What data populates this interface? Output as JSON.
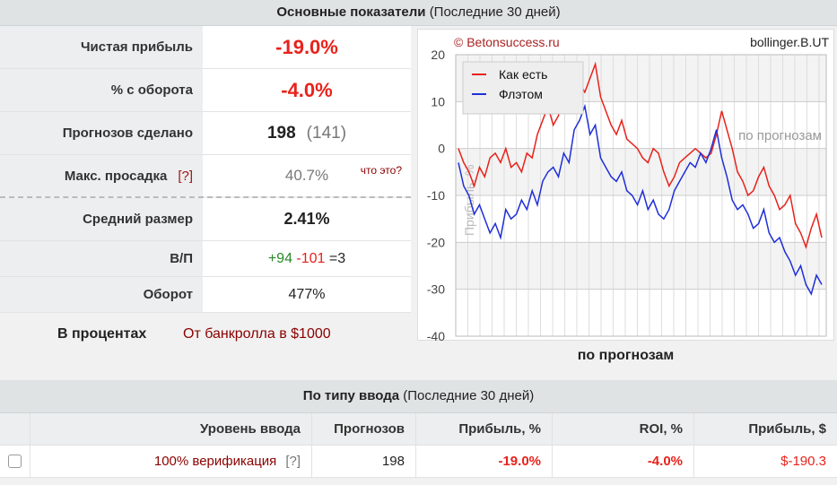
{
  "header1": {
    "title": "Основные показатели",
    "subtitle": "(Последние 30 дней)"
  },
  "stats": {
    "net_profit": {
      "label": "Чистая прибыль",
      "value": "-19.0%"
    },
    "turnover_pct": {
      "label": "% с оборота",
      "value": "-4.0%"
    },
    "predictions": {
      "label": "Прогнозов сделано",
      "value": "198",
      "secondary": "(141)"
    },
    "max_drawdown": {
      "label": "Макс. просадка",
      "help": "[?]",
      "value": "40.7%",
      "link": "что это?"
    },
    "avg_size": {
      "label": "Средний размер",
      "value": "2.41%"
    },
    "wl": {
      "label": "В/П",
      "wins": "+94",
      "losses": "-101",
      "draws": "=3"
    },
    "turnover": {
      "label": "Оборот",
      "value": "477%"
    }
  },
  "percent_row": {
    "label": "В процентах",
    "link": "От банкролла в $1000"
  },
  "chart_data": {
    "type": "line",
    "watermark": "© Betonsuccess.ru",
    "user": "bollinger.B.UT",
    "ylabel": "Прибыль, %",
    "xlabel_inner": "по прогнозам",
    "caption": "по прогнозам",
    "ylim": [
      -40,
      20
    ],
    "yticks": [
      "20",
      "10",
      "0",
      "-10",
      "-20",
      "-30",
      "-40"
    ],
    "grid": true,
    "legend_position": "top-left",
    "series": [
      {
        "name": "Как есть",
        "color": "#e8221b",
        "values": [
          0,
          -3,
          -5,
          -8,
          -4,
          -6,
          -2,
          -1,
          -3,
          0,
          -4,
          -3,
          -5,
          -1,
          -2,
          3,
          6,
          9,
          5,
          7,
          12,
          8,
          10,
          14,
          12,
          15,
          18,
          11,
          8,
          5,
          3,
          6,
          2,
          1,
          0,
          -2,
          -3,
          0,
          -1,
          -5,
          -8,
          -6,
          -3,
          -2,
          -1,
          0,
          -1,
          -2,
          -1,
          3,
          8,
          4,
          0,
          -5,
          -7,
          -10,
          -9,
          -6,
          -4,
          -8,
          -10,
          -13,
          -12,
          -10,
          -16,
          -18,
          -21,
          -17,
          -14,
          -19
        ]
      },
      {
        "name": "Флэтом",
        "color": "#1f2fd8",
        "values": [
          -3,
          -8,
          -10,
          -14,
          -12,
          -15,
          -18,
          -16,
          -19,
          -13,
          -15,
          -14,
          -11,
          -13,
          -9,
          -12,
          -7,
          -5,
          -4,
          -6,
          -1,
          -3,
          4,
          6,
          9,
          3,
          5,
          -2,
          -4,
          -6,
          -7,
          -5,
          -9,
          -10,
          -12,
          -9,
          -13,
          -11,
          -14,
          -15,
          -13,
          -9,
          -7,
          -5,
          -3,
          -4,
          -1,
          -3,
          0,
          4,
          -2,
          -6,
          -11,
          -13,
          -12,
          -14,
          -17,
          -16,
          -13,
          -18,
          -20,
          -19,
          -22,
          -24,
          -27,
          -25,
          -29,
          -31,
          -27,
          -29
        ]
      }
    ]
  },
  "header2": {
    "title": "По типу ввода",
    "subtitle": "(Последние 30 дней)"
  },
  "table": {
    "columns": [
      "Уровень ввода",
      "Прогнозов",
      "Прибыль, %",
      "ROI, %",
      "Прибыль, $"
    ],
    "rows": [
      {
        "level": "100% верификация",
        "help": "[?]",
        "predictions": "198",
        "profit_pct": "-19.0%",
        "roi": "-4.0%",
        "profit_usd": "$-190.3"
      }
    ]
  }
}
